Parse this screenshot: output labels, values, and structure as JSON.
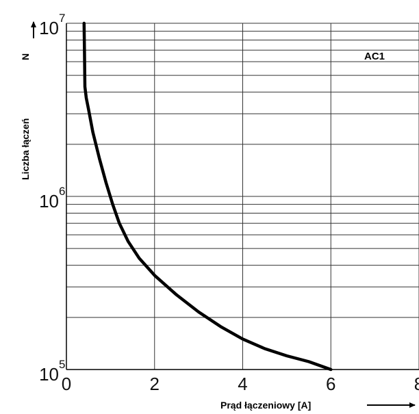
{
  "chart_data": {
    "type": "line",
    "xlabel": "Prąd łączeniowy [A]",
    "ylabel": "Liczba łączeń",
    "y_symbol": "N",
    "annotation": "AC1",
    "x_scale": "linear",
    "y_scale": "log",
    "xlim": [
      0,
      8
    ],
    "ylim": [
      100000,
      10000000
    ],
    "x_ticks": [
      0,
      2,
      4,
      6,
      8
    ],
    "x_tick_labels": [
      "0",
      "2",
      "4",
      "6",
      "8"
    ],
    "y_ticks": [
      {
        "value": 100000,
        "base": "10",
        "exp": "5"
      },
      {
        "value": 1000000,
        "base": "10",
        "exp": "6"
      },
      {
        "value": 10000000,
        "base": "10",
        "exp": "7"
      }
    ],
    "grid": true,
    "series": [
      {
        "color": "#000000",
        "x": [
          0.4,
          0.41,
          0.42,
          0.45,
          0.5,
          0.6,
          0.75,
          0.9,
          1.05,
          1.2,
          1.4,
          1.65,
          2.0,
          2.5,
          3.0,
          3.5,
          4.0,
          4.5,
          5.0,
          5.5,
          6.0
        ],
        "y": [
          10000000,
          6800000,
          4300000,
          3700000,
          3200000,
          2350000,
          1650000,
          1200000,
          900000,
          700000,
          550000,
          440000,
          350000,
          270000,
          215000,
          177000,
          150000,
          132000,
          120000,
          111000,
          100000
        ]
      }
    ]
  }
}
